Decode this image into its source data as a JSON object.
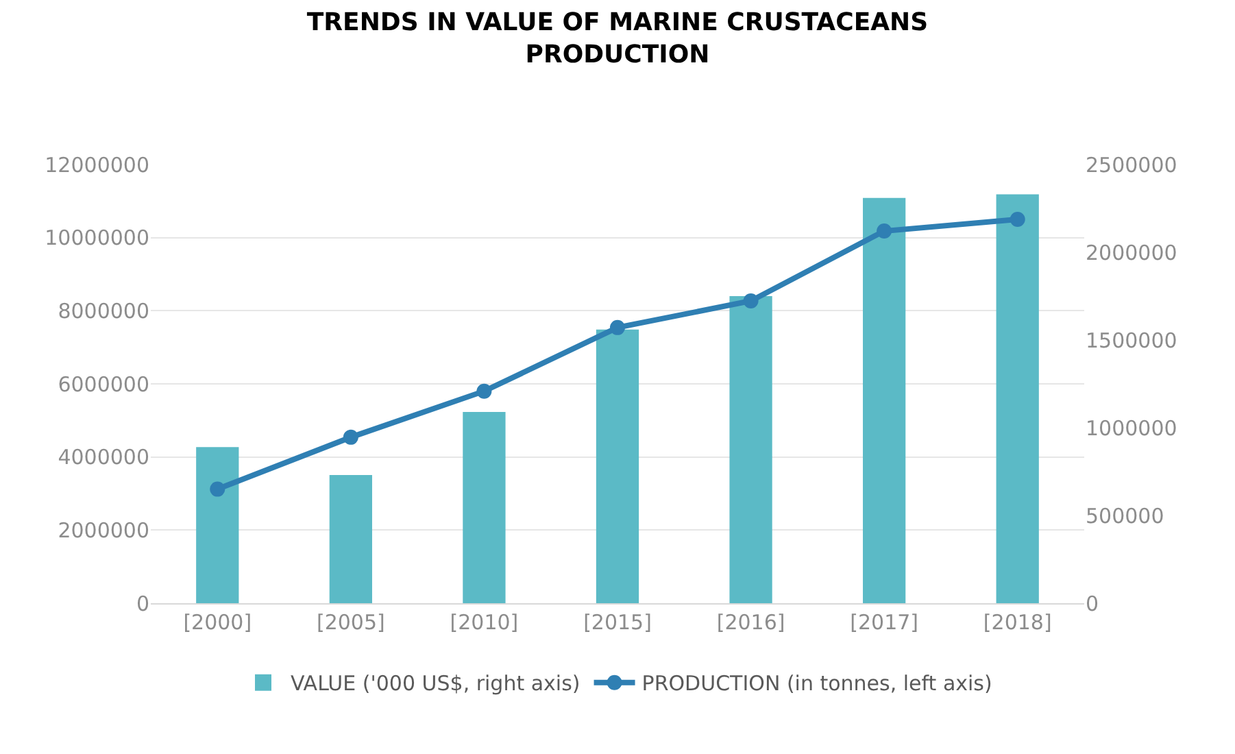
{
  "chart_data": {
    "type": "bar",
    "title": "TRENDS IN VALUE OF MARINE CRUSTACEANS PRODUCTION",
    "categories": [
      "[2000]",
      "[2005]",
      "[2010]",
      "[2015]",
      "[2016]",
      "[2017]",
      "[2018]"
    ],
    "series": [
      {
        "name": "VALUE ('000 US$, right axis)",
        "axis": "y2",
        "color": "#5bbac6",
        "values": [
          890000,
          730000,
          1090000,
          1560000,
          1750000,
          2310000,
          2330000
        ]
      },
      {
        "name": "PRODUCTION (in tonnes, left axis)",
        "type": "line",
        "color": "#2f7fb3",
        "marker": "circle",
        "line_style": "solid",
        "values": [
          3120000,
          4540000,
          5800000,
          7540000,
          8270000,
          10180000,
          10500000
        ]
      }
    ],
    "ylim": [
      0,
      12000000
    ],
    "yticks": [
      0,
      2000000,
      4000000,
      6000000,
      8000000,
      10000000,
      12000000
    ],
    "y2lim": [
      0,
      2500000
    ],
    "y2ticks": [
      0,
      500000,
      1000000,
      1500000,
      2000000,
      2500000
    ],
    "grid": "y",
    "legend": "bottom"
  }
}
